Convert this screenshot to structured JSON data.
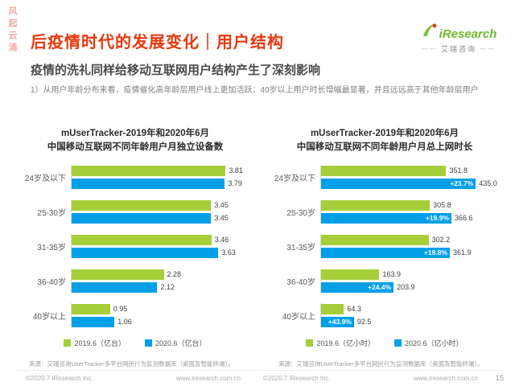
{
  "ribbon": "风起云涌",
  "logo": {
    "name": "iResearch",
    "cn": "艾瑞咨询"
  },
  "header": {
    "title": "后疫情时代的发展变化｜用户结构",
    "subtitle": "疫情的洗礼同样给移动互联网用户结构产生了深刻影响"
  },
  "body_text": "1）从用户年龄分布来看，疫情催化高年龄层用户线上更加活跃：40岁以上用户时长增幅最显著，并且远远高于其他年龄层用户",
  "colors": {
    "brand_red": "#e8380d",
    "series_green": "#a6ce39",
    "series_blue": "#00a0e9"
  },
  "chart_data": [
    {
      "type": "bar",
      "orientation": "horizontal",
      "title_line1": "mUserTracker-2019年和2020年6月",
      "title_line2": "中国移动互联网不同年龄用户月独立设备数",
      "categories": [
        "24岁及以下",
        "25-30岁",
        "31-35岁",
        "36-40岁",
        "40岁以上"
      ],
      "xmax": 4.4,
      "legend_position": "bottom",
      "series": [
        {
          "name": "2019.6（亿台）",
          "color": "#a6ce39",
          "values": [
            "3.81",
            "3.45",
            "3.46",
            "2.28",
            "0.95"
          ]
        },
        {
          "name": "2020.6（亿台）",
          "color": "#00a0e9",
          "values": [
            "3.79",
            "3.45",
            "3.63",
            "2.12",
            "1.06"
          ]
        }
      ]
    },
    {
      "type": "bar",
      "orientation": "horizontal",
      "title_line1": "mUserTracker-2019年和2020年6月",
      "title_line2": "中国移动互联网不同年龄用户月总上网时长",
      "categories": [
        "24岁及以下",
        "25-30岁",
        "31-35岁",
        "36-40岁",
        "40岁以上"
      ],
      "xmax": 500,
      "legend_position": "bottom",
      "series": [
        {
          "name": "2019.6（亿小时）",
          "color": "#a6ce39",
          "values": [
            "351.8",
            "305.8",
            "302.2",
            "163.9",
            "64.3"
          ]
        },
        {
          "name": "2020.6（亿小时）",
          "color": "#00a0e9",
          "values": [
            "435.0",
            "366.6",
            "361.9",
            "203.9",
            "92.5"
          ],
          "growth_labels": [
            "+23.7%",
            "+19.9%",
            "+19.8%",
            "+24.4%",
            "+43.9%"
          ]
        }
      ]
    }
  ],
  "footer": {
    "source": "来源：艾瑞咨询UserTracker多平台网民行为监测数据库（桌面及智能终端）。",
    "copyright": "©2020.7 iResearch Inc.",
    "site": "www.iresearch.com.cn",
    "page": "15"
  }
}
